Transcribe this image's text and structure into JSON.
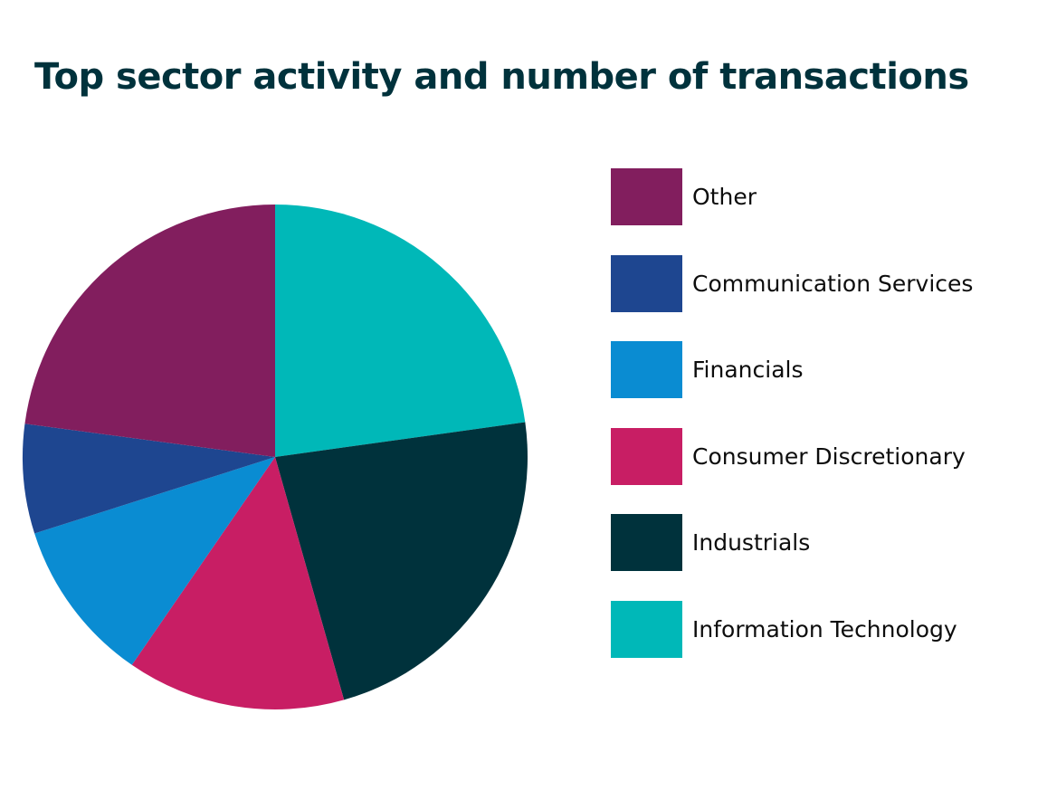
{
  "chart_data": {
    "type": "pie",
    "title": "Top sector activity and number of transactions",
    "start": "12 o'clock",
    "direction": "clockwise",
    "slices": [
      {
        "label": "Information Technology",
        "value": 22.8,
        "color": "#00b8b8"
      },
      {
        "label": "Industrials",
        "value": 22.8,
        "color": "#00323c"
      },
      {
        "label": "Consumer Discretionary",
        "value": 14.0,
        "color": "#c81e64"
      },
      {
        "label": "Financials",
        "value": 10.5,
        "color": "#0a8cd2"
      },
      {
        "label": "Communication Services",
        "value": 7.0,
        "color": "#1e4690"
      },
      {
        "label": "Other",
        "value": 22.9,
        "color": "#821e5e"
      }
    ],
    "legend": {
      "position": "right",
      "order": [
        "Other",
        "Communication Services",
        "Financials",
        "Consumer Discretionary",
        "Industrials",
        "Information Technology"
      ]
    }
  }
}
